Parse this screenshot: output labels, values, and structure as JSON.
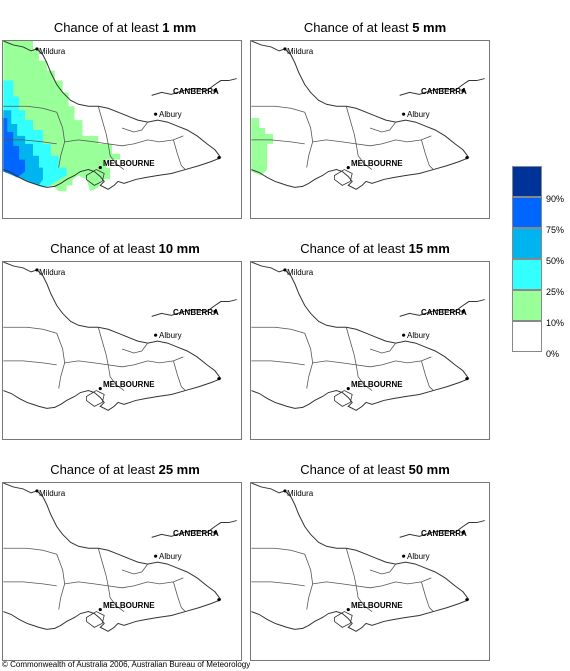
{
  "panels": [
    {
      "prefix": "Chance of at least ",
      "amount": "1 mm"
    },
    {
      "prefix": "Chance of at least ",
      "amount": "5 mm"
    },
    {
      "prefix": "Chance of at least ",
      "amount": "10 mm"
    },
    {
      "prefix": "Chance of at least ",
      "amount": "15 mm"
    },
    {
      "prefix": "Chance of at least ",
      "amount": "25 mm"
    },
    {
      "prefix": "Chance of at least ",
      "amount": "50 mm"
    }
  ],
  "cities": {
    "mildura": "Mildura",
    "canberra": "CANBERRA",
    "albury": "Albury",
    "melbourne": "MELBOURNE"
  },
  "legend": {
    "labels": [
      "90%",
      "75%",
      "50%",
      "25%",
      "10%",
      "0%"
    ],
    "colors": [
      "#003399",
      "#0066ff",
      "#00b4f0",
      "#33ffff",
      "#99ff99",
      "#ffffff"
    ]
  },
  "copyright": "© Commonwealth of Australia 2006, Australian Bureau of Meteorology"
}
